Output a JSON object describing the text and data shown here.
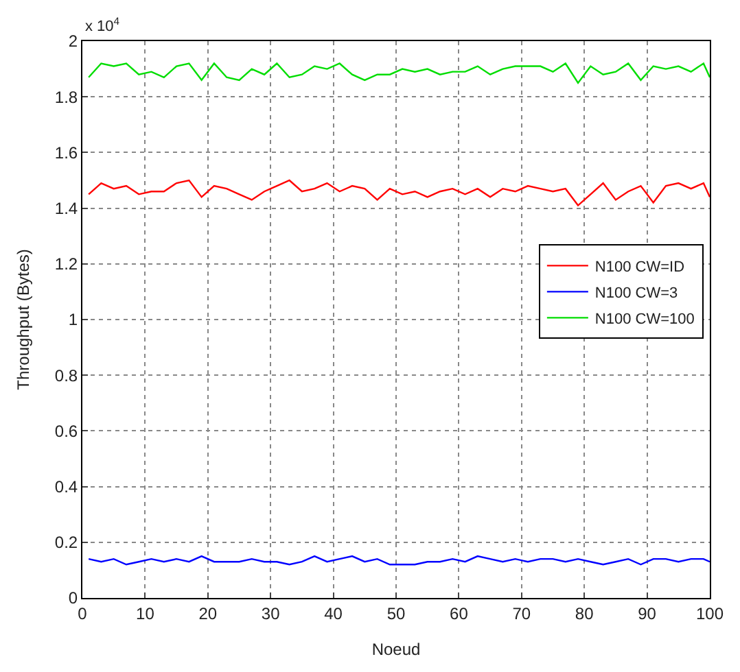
{
  "chart_data": {
    "type": "line",
    "xlabel": "Noeud",
    "ylabel": "Throughput (Bytes)",
    "annotations": [
      "x 10$^{4}$"
    ],
    "x": [
      1,
      3,
      5,
      7,
      9,
      11,
      13,
      15,
      17,
      19,
      21,
      23,
      25,
      27,
      29,
      31,
      33,
      35,
      37,
      39,
      41,
      43,
      45,
      47,
      49,
      51,
      53,
      55,
      57,
      59,
      61,
      63,
      65,
      67,
      69,
      71,
      73,
      75,
      77,
      79,
      81,
      83,
      85,
      87,
      89,
      91,
      93,
      95,
      97,
      99,
      100
    ],
    "series": [
      {
        "name": "N100 CW=ID",
        "color": "#ff0000",
        "values": [
          1.45,
          1.49,
          1.47,
          1.48,
          1.45,
          1.46,
          1.46,
          1.49,
          1.5,
          1.44,
          1.48,
          1.47,
          1.45,
          1.43,
          1.46,
          1.48,
          1.5,
          1.46,
          1.47,
          1.49,
          1.46,
          1.48,
          1.47,
          1.43,
          1.47,
          1.45,
          1.46,
          1.44,
          1.46,
          1.47,
          1.45,
          1.47,
          1.44,
          1.47,
          1.46,
          1.48,
          1.47,
          1.46,
          1.47,
          1.41,
          1.45,
          1.49,
          1.43,
          1.46,
          1.48,
          1.42,
          1.48,
          1.49,
          1.47,
          1.49,
          1.44
        ]
      },
      {
        "name": "N100 CW=3",
        "color": "#0000ff",
        "values": [
          0.14,
          0.13,
          0.14,
          0.12,
          0.13,
          0.14,
          0.13,
          0.14,
          0.13,
          0.15,
          0.13,
          0.13,
          0.13,
          0.14,
          0.13,
          0.13,
          0.12,
          0.13,
          0.15,
          0.13,
          0.14,
          0.15,
          0.13,
          0.14,
          0.12,
          0.12,
          0.12,
          0.13,
          0.13,
          0.14,
          0.13,
          0.15,
          0.14,
          0.13,
          0.14,
          0.13,
          0.14,
          0.14,
          0.13,
          0.14,
          0.13,
          0.12,
          0.13,
          0.14,
          0.12,
          0.14,
          0.14,
          0.13,
          0.14,
          0.14,
          0.13
        ]
      },
      {
        "name": "N100 CW=100",
        "color": "#00dd00",
        "values": [
          1.87,
          1.92,
          1.91,
          1.92,
          1.88,
          1.89,
          1.87,
          1.91,
          1.92,
          1.86,
          1.92,
          1.87,
          1.86,
          1.9,
          1.88,
          1.92,
          1.87,
          1.88,
          1.91,
          1.9,
          1.92,
          1.88,
          1.86,
          1.88,
          1.88,
          1.9,
          1.89,
          1.9,
          1.88,
          1.89,
          1.89,
          1.91,
          1.88,
          1.9,
          1.91,
          1.91,
          1.91,
          1.89,
          1.92,
          1.85,
          1.91,
          1.88,
          1.89,
          1.92,
          1.86,
          1.91,
          1.9,
          1.91,
          1.89,
          1.92,
          1.87
        ]
      }
    ],
    "xlim": [
      0,
      100
    ],
    "xticks": [
      0,
      10,
      20,
      30,
      40,
      50,
      60,
      70,
      80,
      90,
      100
    ],
    "ylim": [
      0,
      2
    ],
    "yticks": [
      0,
      0.2,
      0.4,
      0.6,
      0.8,
      1,
      1.2,
      1.4,
      1.6,
      1.8,
      2
    ],
    "grid": true,
    "legend": "right",
    "marker": "none",
    "line_style": "solid"
  }
}
